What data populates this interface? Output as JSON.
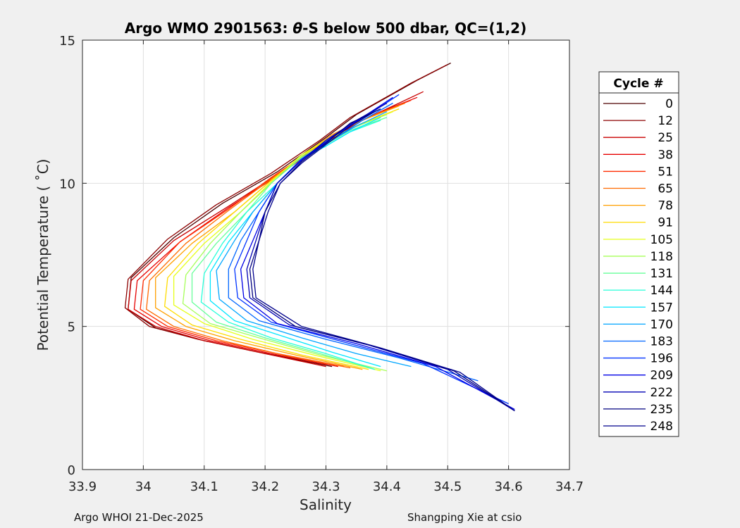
{
  "figure": {
    "title_prefix": "Argo WMO 2901563: ",
    "title_theta": "θ",
    "title_suffix": "-S below 500 dbar,  QC=(1,2)",
    "footer_left": "Argo WHOI 21-Dec-2025",
    "footer_right": "Shangping Xie at csio"
  },
  "chart_data": {
    "type": "line",
    "xlabel": "Salinity",
    "ylabel": "Potential Temperature ( ˚C)",
    "xlim": [
      33.9,
      34.7
    ],
    "ylim": [
      0,
      15
    ],
    "xticks": [
      "33.9",
      "34",
      "34.1",
      "34.2",
      "34.3",
      "34.4",
      "34.5",
      "34.6",
      "34.7"
    ],
    "yticks": [
      "0",
      "5",
      "10",
      "15"
    ],
    "grid": true,
    "legend_title": "Cycle #",
    "legend_location": "outside-right",
    "series": [
      {
        "name": "0",
        "color": "#4d0000",
        "x": [
          34.505,
          34.45,
          34.4,
          34.35,
          34.3,
          34.22,
          34.13,
          34.05,
          33.98,
          33.975,
          34.02,
          34.1,
          34.2,
          34.31
        ],
        "y": [
          14.2,
          13.6,
          13.0,
          12.4,
          11.6,
          10.4,
          9.3,
          8.1,
          6.7,
          5.6,
          4.95,
          4.5,
          4.05,
          3.6
        ]
      },
      {
        "name": "12",
        "color": "#8c0000",
        "x": [
          34.5,
          34.44,
          34.39,
          34.34,
          34.29,
          34.21,
          34.12,
          34.04,
          33.975,
          33.97,
          34.01,
          34.09,
          34.19,
          34.3
        ],
        "y": [
          14.15,
          13.5,
          12.9,
          12.3,
          11.5,
          10.35,
          9.25,
          8.05,
          6.65,
          5.65,
          5.0,
          4.55,
          4.1,
          3.65
        ]
      },
      {
        "name": "25",
        "color": "#c80000",
        "x": [
          34.46,
          34.4,
          34.35,
          34.3,
          34.22,
          34.14,
          34.05,
          33.98,
          33.975,
          34.02,
          34.1,
          34.2,
          34.3
        ],
        "y": [
          13.2,
          12.6,
          12.1,
          11.4,
          10.3,
          9.2,
          8.0,
          6.6,
          5.6,
          5.0,
          4.5,
          4.05,
          3.6
        ]
      },
      {
        "name": "38",
        "color": "#e60000",
        "x": [
          34.45,
          34.39,
          34.34,
          34.29,
          34.22,
          34.14,
          34.06,
          33.99,
          33.985,
          34.03,
          34.11,
          34.21,
          34.32
        ],
        "y": [
          13.0,
          12.5,
          12.0,
          11.3,
          10.25,
          9.15,
          7.95,
          6.6,
          5.6,
          5.0,
          4.5,
          4.05,
          3.6
        ]
      },
      {
        "name": "51",
        "color": "#ff2a00",
        "x": [
          34.44,
          34.38,
          34.33,
          34.28,
          34.21,
          34.14,
          34.06,
          34.0,
          33.995,
          34.04,
          34.12,
          34.22,
          34.33
        ],
        "y": [
          12.9,
          12.4,
          11.9,
          11.2,
          10.2,
          9.1,
          7.95,
          6.6,
          5.6,
          5.0,
          4.5,
          4.05,
          3.6
        ]
      },
      {
        "name": "65",
        "color": "#ff6a00",
        "x": [
          34.43,
          34.37,
          34.32,
          34.28,
          34.21,
          34.14,
          34.07,
          34.01,
          34.005,
          34.05,
          34.13,
          34.23,
          34.34
        ],
        "y": [
          12.8,
          12.3,
          11.8,
          11.2,
          10.15,
          9.05,
          7.9,
          6.6,
          5.6,
          5.0,
          4.5,
          4.0,
          3.55
        ]
      },
      {
        "name": "78",
        "color": "#ffa000",
        "x": [
          34.42,
          34.36,
          34.31,
          34.27,
          34.21,
          34.15,
          34.08,
          34.02,
          34.02,
          34.07,
          34.15,
          34.25,
          34.36
        ],
        "y": [
          12.7,
          12.2,
          11.7,
          11.1,
          10.1,
          9.0,
          7.9,
          6.7,
          5.65,
          5.0,
          4.5,
          4.0,
          3.5
        ]
      },
      {
        "name": "91",
        "color": "#ffdc00",
        "x": [
          34.42,
          34.36,
          34.31,
          34.27,
          34.21,
          34.15,
          34.09,
          34.04,
          34.035,
          34.08,
          34.16,
          34.26,
          34.37
        ],
        "y": [
          12.6,
          12.1,
          11.6,
          11.1,
          10.1,
          9.0,
          7.9,
          6.7,
          5.7,
          5.05,
          4.55,
          4.0,
          3.5
        ]
      },
      {
        "name": "105",
        "color": "#e6ff1a",
        "x": [
          34.41,
          34.35,
          34.3,
          34.26,
          34.21,
          34.16,
          34.1,
          34.05,
          34.05,
          34.1,
          34.18,
          34.28,
          34.39
        ],
        "y": [
          12.5,
          12.0,
          11.5,
          11.0,
          10.05,
          9.0,
          7.9,
          6.75,
          5.75,
          5.1,
          4.55,
          4.0,
          3.45
        ]
      },
      {
        "name": "118",
        "color": "#a6ff59",
        "x": [
          34.4,
          34.34,
          34.3,
          34.26,
          34.21,
          34.16,
          34.11,
          34.07,
          34.065,
          34.11,
          34.19,
          34.29,
          34.4
        ],
        "y": [
          12.4,
          11.9,
          11.4,
          10.95,
          10.0,
          9.0,
          7.9,
          6.8,
          5.8,
          5.1,
          4.6,
          4.0,
          3.45
        ]
      },
      {
        "name": "131",
        "color": "#66ff99",
        "x": [
          34.4,
          34.34,
          34.3,
          34.26,
          34.21,
          34.17,
          34.12,
          34.08,
          34.08,
          34.12,
          34.2,
          34.29,
          34.38
        ],
        "y": [
          12.3,
          11.85,
          11.35,
          10.9,
          10.0,
          9.0,
          7.9,
          6.85,
          5.85,
          5.15,
          4.6,
          4.05,
          3.5
        ]
      },
      {
        "name": "144",
        "color": "#26ffd9",
        "x": [
          34.39,
          34.34,
          34.3,
          34.26,
          34.22,
          34.17,
          34.13,
          34.1,
          34.095,
          34.14,
          34.21,
          34.3,
          34.38
        ],
        "y": [
          12.2,
          11.8,
          11.3,
          10.85,
          10.0,
          9.0,
          7.9,
          6.85,
          5.85,
          5.15,
          4.6,
          4.05,
          3.5
        ]
      },
      {
        "name": "157",
        "color": "#00e6ff",
        "x": [
          34.39,
          34.34,
          34.3,
          34.26,
          34.22,
          34.18,
          34.14,
          34.11,
          34.11,
          34.15,
          34.23,
          34.31,
          34.39
        ],
        "y": [
          12.3,
          11.8,
          11.3,
          10.85,
          10.0,
          9.0,
          7.95,
          6.9,
          5.9,
          5.2,
          4.65,
          4.1,
          3.6
        ]
      },
      {
        "name": "170",
        "color": "#00a6ff",
        "x": [
          34.4,
          34.35,
          34.3,
          34.26,
          34.22,
          34.18,
          34.15,
          34.12,
          34.125,
          34.17,
          34.26,
          34.35,
          34.44
        ],
        "y": [
          12.5,
          12.0,
          11.4,
          10.85,
          10.0,
          9.0,
          8.0,
          6.95,
          5.95,
          5.2,
          4.6,
          4.05,
          3.6
        ]
      },
      {
        "name": "183",
        "color": "#0066ff",
        "x": [
          34.41,
          34.36,
          34.31,
          34.26,
          34.22,
          34.19,
          34.16,
          34.14,
          34.14,
          34.19,
          34.3,
          34.42,
          34.55
        ],
        "y": [
          12.8,
          12.2,
          11.5,
          10.85,
          10.0,
          9.0,
          8.0,
          7.0,
          6.0,
          5.2,
          4.55,
          3.9,
          3.1
        ]
      },
      {
        "name": "196",
        "color": "#0033ff",
        "x": [
          34.42,
          34.37,
          34.31,
          34.26,
          34.22,
          34.19,
          34.17,
          34.15,
          34.155,
          34.21,
          34.33,
          34.46,
          34.6
        ],
        "y": [
          13.1,
          12.4,
          11.6,
          10.85,
          10.0,
          9.0,
          8.0,
          7.0,
          6.0,
          5.15,
          4.45,
          3.7,
          2.3
        ]
      },
      {
        "name": "209",
        "color": "#0000e6",
        "x": [
          34.41,
          34.36,
          34.31,
          34.26,
          34.22,
          34.2,
          34.18,
          34.16,
          34.165,
          34.22,
          34.35,
          34.48,
          34.61
        ],
        "y": [
          13.0,
          12.3,
          11.6,
          10.8,
          10.0,
          9.0,
          8.0,
          7.0,
          6.0,
          5.1,
          4.4,
          3.6,
          2.1
        ]
      },
      {
        "name": "222",
        "color": "#0000b3",
        "x": [
          34.4,
          34.35,
          34.3,
          34.26,
          34.22,
          34.2,
          34.185,
          34.17,
          34.175,
          34.24,
          34.37,
          34.5,
          34.61
        ],
        "y": [
          12.8,
          12.2,
          11.5,
          10.8,
          10.0,
          9.0,
          8.0,
          7.0,
          6.0,
          5.05,
          4.35,
          3.5,
          2.05
        ]
      },
      {
        "name": "235",
        "color": "#000080",
        "x": [
          34.39,
          34.34,
          34.3,
          34.26,
          34.225,
          34.2,
          34.19,
          34.175,
          34.18,
          34.25,
          34.38,
          34.51,
          34.61
        ],
        "y": [
          12.6,
          12.1,
          11.4,
          10.75,
          10.0,
          9.0,
          8.0,
          7.0,
          6.0,
          5.0,
          4.3,
          3.45,
          2.05
        ]
      },
      {
        "name": "248",
        "color": "#00008c",
        "x": [
          34.38,
          34.34,
          34.3,
          34.26,
          34.225,
          34.205,
          34.19,
          34.18,
          34.185,
          34.26,
          34.39,
          34.52,
          34.61
        ],
        "y": [
          12.5,
          12.0,
          11.35,
          10.7,
          10.0,
          9.0,
          8.0,
          7.0,
          6.0,
          5.0,
          4.25,
          3.4,
          2.05
        ]
      }
    ]
  }
}
